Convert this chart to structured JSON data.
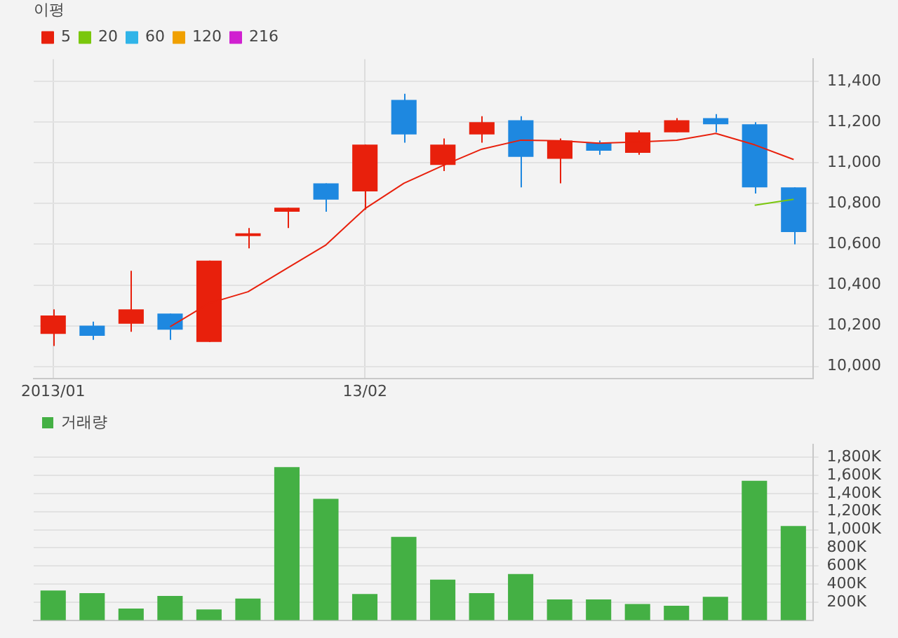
{
  "chart_data": [
    {
      "type": "candlestick",
      "legend_title": "이평",
      "legend": "top left",
      "grid": true,
      "categories": [
        "2013/01",
        null,
        null,
        null,
        null,
        null,
        null,
        null,
        "13/02",
        null,
        null,
        null,
        null,
        null,
        null,
        null,
        null,
        null,
        null,
        null
      ],
      "ohlc": [
        [
          10160,
          10280,
          10100,
          10250
        ],
        [
          10200,
          10220,
          10130,
          10150
        ],
        [
          10210,
          10470,
          10170,
          10280
        ],
        [
          10260,
          10260,
          10130,
          10180
        ],
        [
          10120,
          10520,
          10120,
          10520
        ],
        [
          10640,
          10680,
          10580,
          10650
        ],
        [
          10760,
          10780,
          10680,
          10780
        ],
        [
          10900,
          10900,
          10760,
          10820
        ],
        [
          10860,
          11090,
          10770,
          11090
        ],
        [
          11310,
          11340,
          11100,
          11140
        ],
        [
          10990,
          11120,
          10960,
          11090
        ],
        [
          11140,
          11230,
          11100,
          11200
        ],
        [
          11210,
          11230,
          10880,
          11030
        ],
        [
          11020,
          11120,
          10900,
          11110
        ],
        [
          11100,
          11110,
          11040,
          11060
        ],
        [
          11050,
          11160,
          11040,
          11150
        ],
        [
          11150,
          11220,
          11150,
          11210
        ],
        [
          11220,
          11240,
          11150,
          11190
        ],
        [
          11190,
          11200,
          10850,
          10880
        ],
        [
          10880,
          10880,
          10600,
          10660
        ]
      ],
      "colors": [
        "#e8200c",
        "#1e88e0",
        "#e8200c",
        "#1e88e0",
        "#e8200c",
        "#e8200c",
        "#e8200c",
        "#1e88e0",
        "#e8200c",
        "#1e88e0",
        "#e8200c",
        "#e8200c",
        "#1e88e0",
        "#e8200c",
        "#1e88e0",
        "#e8200c",
        "#e8200c",
        "#1e88e0",
        "#1e88e0",
        "#1e88e0"
      ],
      "series": [
        {
          "name": "5",
          "type": "line",
          "color": "#e8200c",
          "values": [
            null,
            null,
            null,
            10195,
            10310,
            10367,
            10482,
            10597,
            10775,
            10900,
            10987,
            11068,
            11112,
            11109,
            11097,
            11103,
            11112,
            11145,
            11089,
            11017
          ]
        },
        {
          "name": "20",
          "type": "line",
          "color": "#7ac70c",
          "values": [
            null,
            null,
            null,
            null,
            null,
            null,
            null,
            null,
            null,
            null,
            null,
            null,
            null,
            null,
            null,
            null,
            null,
            null,
            10792,
            10821
          ]
        },
        {
          "name": "60",
          "type": "line",
          "color": "#30b4e8",
          "values": [
            null,
            null,
            null,
            null,
            null,
            null,
            null,
            null,
            null,
            null,
            null,
            null,
            null,
            null,
            null,
            null,
            null,
            null,
            null,
            null
          ]
        },
        {
          "name": "120",
          "type": "line",
          "color": "#f0a000",
          "values": [
            null,
            null,
            null,
            null,
            null,
            null,
            null,
            null,
            null,
            null,
            null,
            null,
            null,
            null,
            null,
            null,
            null,
            null,
            null,
            null
          ]
        },
        {
          "name": "216",
          "type": "line",
          "color": "#d020d0",
          "values": [
            null,
            null,
            null,
            null,
            null,
            null,
            null,
            null,
            null,
            null,
            null,
            null,
            null,
            null,
            null,
            null,
            null,
            null,
            null,
            null
          ]
        }
      ],
      "ylim": [
        9940,
        11510
      ],
      "yticks": [
        {
          "value": 10000,
          "label": "10,000"
        },
        {
          "value": 10200,
          "label": "10,200"
        },
        {
          "value": 10400,
          "label": "10,400"
        },
        {
          "value": 10600,
          "label": "10,600"
        },
        {
          "value": 10800,
          "label": "10,800"
        },
        {
          "value": 11000,
          "label": "11,000"
        },
        {
          "value": 11200,
          "label": "11,200"
        },
        {
          "value": 11400,
          "label": "11,400"
        }
      ]
    },
    {
      "type": "bar",
      "legend": "top left",
      "grid": "y",
      "tick_labels": "y",
      "categories": [
        null,
        null,
        null,
        null,
        null,
        null,
        null,
        null,
        null,
        null,
        null,
        null,
        null,
        null,
        null,
        null,
        null,
        null,
        null,
        null
      ],
      "series": [
        {
          "name": "거래량",
          "color": "#44b044",
          "values": [
            330,
            300,
            130,
            270,
            120,
            240,
            1690,
            1340,
            290,
            920,
            450,
            300,
            510,
            230,
            230,
            180,
            160,
            260,
            1540,
            1040
          ]
        }
      ],
      "ylim": [
        0,
        1940
      ],
      "yticks": [
        {
          "value": 200,
          "label": "200K"
        },
        {
          "value": 400,
          "label": "400K"
        },
        {
          "value": 600,
          "label": "600K"
        },
        {
          "value": 800,
          "label": "800K"
        },
        {
          "value": 1000,
          "label": "1,000K"
        },
        {
          "value": 1200,
          "label": "1,200K"
        },
        {
          "value": 1400,
          "label": "1,400K"
        },
        {
          "value": 1600,
          "label": "1,600K"
        },
        {
          "value": 1800,
          "label": "1,800K"
        }
      ]
    }
  ]
}
